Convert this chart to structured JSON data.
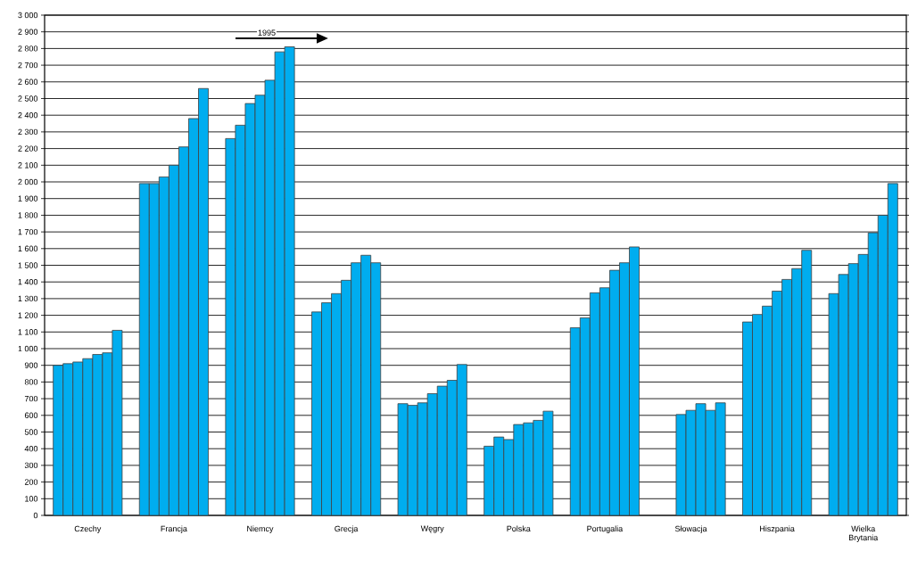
{
  "chart_data": {
    "type": "bar",
    "categories": [
      "Czechy",
      "Francja",
      "Niemcy",
      "Grecja",
      "Węgry",
      "Polska",
      "Portugalia",
      "Słowacja",
      "Hiszpania",
      "Wielka Brytania"
    ],
    "series": [
      {
        "color": "#00adef",
        "values": [
          900,
          1990,
          2260,
          1220,
          670,
          415,
          1125,
          null,
          1160,
          1330
        ]
      },
      {
        "color": "#00adef",
        "values": [
          910,
          1990,
          2340,
          1275,
          660,
          470,
          1185,
          null,
          1205,
          1445
        ]
      },
      {
        "color": "#00adef",
        "values": [
          920,
          2030,
          2470,
          1330,
          675,
          455,
          1335,
          605,
          1255,
          1510
        ]
      },
      {
        "color": "#00adef",
        "values": [
          940,
          2100,
          2520,
          1410,
          730,
          545,
          1365,
          630,
          1345,
          1565
        ]
      },
      {
        "color": "#00adef",
        "values": [
          965,
          2210,
          2610,
          1515,
          775,
          555,
          1470,
          670,
          1415,
          1695
        ]
      },
      {
        "color": "#00adef",
        "values": [
          975,
          2380,
          2780,
          1560,
          810,
          570,
          1515,
          630,
          1480,
          1800
        ]
      },
      {
        "color": "#00adef",
        "values": [
          1110,
          2560,
          2810,
          1515,
          905,
          625,
          1610,
          675,
          1590,
          1990
        ]
      }
    ],
    "ylim": [
      0,
      3000
    ],
    "yticks": [
      0,
      100,
      200,
      300,
      400,
      500,
      600,
      700,
      800,
      900,
      {
        "value": 1000,
        "label": "1 000"
      },
      {
        "value": 1100,
        "label": "1 100"
      },
      {
        "value": 1200,
        "label": "1 200"
      },
      {
        "value": 1300,
        "label": "1 300"
      },
      {
        "value": 1400,
        "label": "1 400"
      },
      {
        "value": 1500,
        "label": "1 500"
      },
      {
        "value": 1600,
        "label": "1 600"
      },
      {
        "value": 1700,
        "label": "1 700"
      },
      {
        "value": 1800,
        "label": "1 800"
      },
      {
        "value": 1900,
        "label": "1 900"
      },
      {
        "value": 2000,
        "label": "2 000"
      },
      {
        "value": 2100,
        "label": "2 100"
      },
      {
        "value": 2200,
        "label": "2 200"
      },
      {
        "value": 2300,
        "label": "2 300"
      },
      {
        "value": 2400,
        "label": "2 400"
      },
      {
        "value": 2500,
        "label": "2 500"
      },
      {
        "value": 2600,
        "label": "2 600"
      },
      {
        "value": 2700,
        "label": "2 700"
      },
      {
        "value": 2800,
        "label": "2 800"
      },
      {
        "value": 2900,
        "label": "2 900"
      },
      {
        "value": 3000,
        "label": "3 000"
      }
    ],
    "grid": "y",
    "annotations": [
      "1995"
    ]
  }
}
